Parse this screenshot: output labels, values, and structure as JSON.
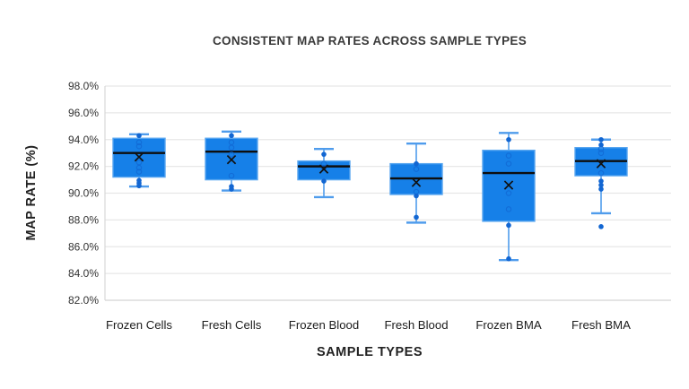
{
  "chart_data": {
    "type": "boxplot",
    "title": "CONSISTENT MAP RATES ACROSS SAMPLE TYPES",
    "xlabel": "SAMPLE TYPES",
    "ylabel": "MAP RATE (%)",
    "grid": "horizontal",
    "legend": "none",
    "y_axis": {
      "min": 82,
      "max": 98,
      "tick_step": 2,
      "tick_values": [
        98,
        96,
        94,
        92,
        90,
        88,
        86,
        84,
        82
      ],
      "tick_labels": [
        "98.0%",
        "96.0%",
        "94.0%",
        "92.0%",
        "90.0%",
        "88.0%",
        "86.0%",
        "84.0%",
        "82.0%"
      ]
    },
    "categories": [
      "Frozen Cells",
      "Fresh Cells",
      "Frozen Blood",
      "Fresh Blood",
      "Frozen BMA",
      "Fresh BMA"
    ],
    "series": [
      {
        "name": "Frozen Cells",
        "whisker_low": 90.5,
        "q1": 91.2,
        "median": 93.0,
        "q3": 94.1,
        "whisker_high": 94.4,
        "mean": 92.7,
        "points_filled": [
          94.3,
          90.95,
          90.75,
          90.55
        ],
        "points_open": [
          93.8,
          93.5,
          92.3,
          91.9,
          91.6
        ]
      },
      {
        "name": "Fresh Cells",
        "whisker_low": 90.2,
        "q1": 91.0,
        "median": 93.1,
        "q3": 94.1,
        "whisker_high": 94.6,
        "mean": 92.5,
        "points_filled": [
          94.3,
          90.5,
          90.3
        ],
        "points_open": [
          93.8,
          93.4,
          92.9,
          91.3
        ]
      },
      {
        "name": "Frozen Blood",
        "whisker_low": 89.7,
        "q1": 91.0,
        "median": 92.0,
        "q3": 92.4,
        "whisker_high": 93.3,
        "mean": 91.8,
        "points_filled": [
          92.9,
          90.9
        ],
        "points_open": [
          92.2,
          91.9
        ]
      },
      {
        "name": "Fresh Blood",
        "whisker_low": 87.8,
        "q1": 89.9,
        "median": 91.1,
        "q3": 92.2,
        "whisker_high": 93.7,
        "mean": 90.8,
        "points_filled": [
          92.2,
          89.8,
          88.2
        ],
        "points_open": [
          91.8,
          90.1
        ]
      },
      {
        "name": "Frozen BMA",
        "whisker_low": 85.0,
        "q1": 87.9,
        "median": 91.5,
        "q3": 93.2,
        "whisker_high": 94.5,
        "mean": 90.6,
        "points_filled": [
          94.0,
          87.6,
          85.1
        ],
        "points_open": [
          92.8,
          92.2,
          90.0,
          88.8
        ]
      },
      {
        "name": "Fresh BMA",
        "whisker_low": 88.5,
        "q1": 91.3,
        "median": 92.4,
        "q3": 93.4,
        "whisker_high": 94.0,
        "mean": 92.2,
        "points_filled": [
          94.0,
          93.6,
          90.9,
          90.6,
          90.3,
          87.5
        ],
        "points_open": [
          93.3,
          93.0,
          91.5
        ]
      }
    ],
    "colors": {
      "box_fill": "#1680e8",
      "box_border": "#58a6f0",
      "whisker": "#4f9cec",
      "median_line": "#0e0e0e",
      "mean_marker": "#111111",
      "point_fill": "#1266d2",
      "point_open_stroke": "#1266d2",
      "gridline": "#e7e7e7",
      "axis_line": "#d8d8d8",
      "title_text": "#3a3a3a",
      "tick_text": "#333333",
      "category_text": "#1c1c1c"
    }
  }
}
